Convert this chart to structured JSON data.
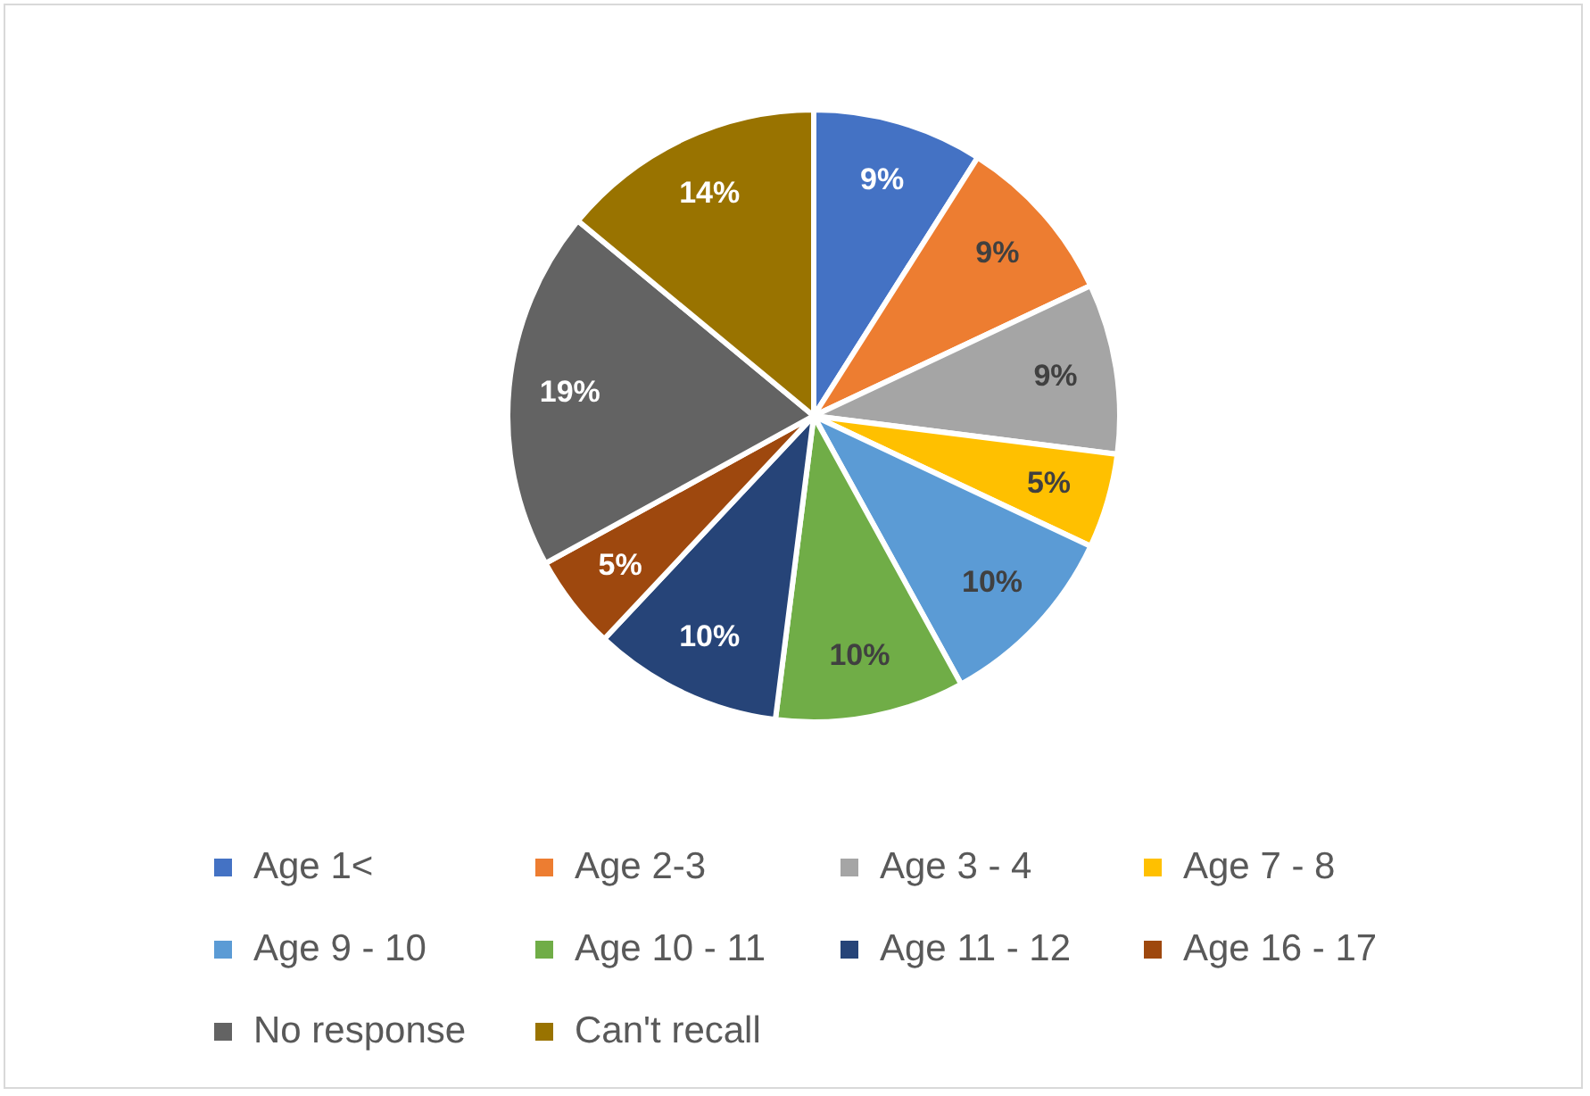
{
  "chart_data": {
    "type": "pie",
    "categories": [
      "Age 1<",
      "Age 2-3",
      "Age 3 - 4",
      "Age 7 - 8",
      "Age 9 - 10",
      "Age 10 - 11",
      "Age 11 - 12",
      "Age 16 - 17",
      "No response",
      "Can't recall"
    ],
    "values": [
      9,
      9,
      9,
      5,
      10,
      10,
      10,
      5,
      19,
      14
    ],
    "colors": [
      "#4472c4",
      "#ed7d31",
      "#a5a5a5",
      "#ffc000",
      "#5b9bd5",
      "#70ad47",
      "#264478",
      "#9e480e",
      "#636363",
      "#997300"
    ],
    "value_labels": [
      "9%",
      "9%",
      "9%",
      "5%",
      "10%",
      "10%",
      "10%",
      "5%",
      "19%",
      "14%"
    ],
    "legend": "bottom"
  }
}
